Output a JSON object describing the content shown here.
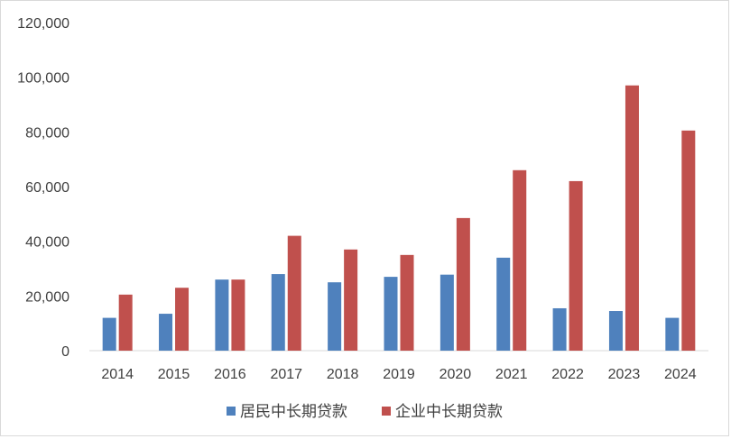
{
  "chart_data": {
    "type": "bar",
    "title": "",
    "xlabel": "",
    "ylabel": "",
    "ylim": [
      0,
      120000
    ],
    "yticks": [
      0,
      20000,
      40000,
      60000,
      80000,
      100000,
      120000
    ],
    "ytick_labels": [
      "0",
      "20,000",
      "40,000",
      "60,000",
      "80,000",
      "100,000",
      "120,000"
    ],
    "categories": [
      "2014",
      "2015",
      "2016",
      "2017",
      "2018",
      "2019",
      "2020",
      "2021",
      "2022",
      "2023",
      "2024"
    ],
    "series": [
      {
        "name": "居民中长期贷款",
        "color": "#4f81bd",
        "values": [
          12000,
          13500,
          26000,
          28000,
          25000,
          27000,
          27800,
          34000,
          15500,
          14500,
          12000
        ]
      },
      {
        "name": "企业中长期贷款",
        "color": "#c0504d",
        "values": [
          20500,
          23000,
          26000,
          42000,
          37000,
          35000,
          48500,
          66000,
          62000,
          97000,
          80500
        ]
      }
    ],
    "grid": false,
    "legend_position": "bottom"
  }
}
